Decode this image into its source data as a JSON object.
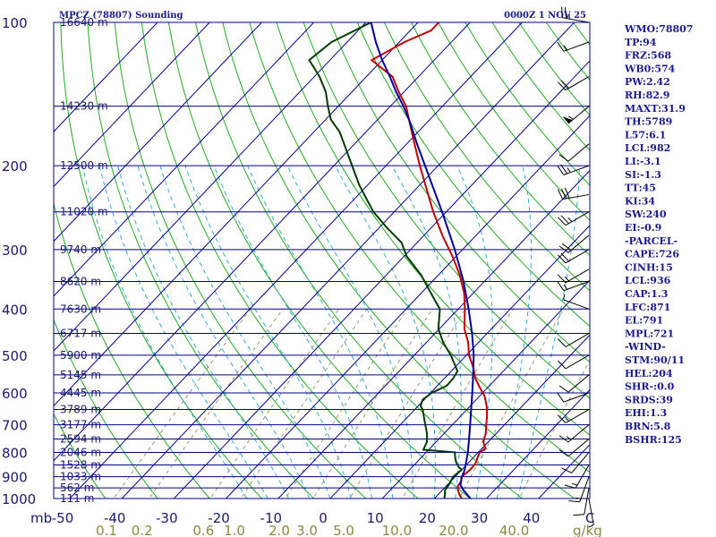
{
  "chart_data": {
    "type": "skew-t",
    "title": "MPCZ (78807) Sounding",
    "valid_time": "0000Z  1 NOV 25",
    "y_axis_label": "mb",
    "x_axis_label": "C",
    "mixing_ratio_unit": "g/kg",
    "pressure_levels": [
      100,
      200,
      300,
      400,
      500,
      600,
      700,
      800,
      900,
      1000
    ],
    "temperature_ticks": [
      -50,
      -40,
      -30,
      -20,
      -10,
      0,
      10,
      20,
      30,
      40
    ],
    "mixing_ratio_ticks": [
      "0.1",
      "0.2",
      "0.6",
      "1.0",
      "2.0",
      "3.0",
      "5.0",
      "10.0",
      "20.0",
      "40.0"
    ],
    "mixing_ratio_values": [
      0.1,
      0.2,
      0.6,
      1.0,
      2.0,
      3.0,
      5.0,
      10.0,
      20.0,
      40.0
    ],
    "heights": [
      {
        "p": 100,
        "label": "16640 m"
      },
      {
        "p": 150,
        "label": "14230 m"
      },
      {
        "p": 200,
        "label": "12500 m"
      },
      {
        "p": 250,
        "label": "11020 m"
      },
      {
        "p": 300,
        "label": "9740 m"
      },
      {
        "p": 350,
        "label": "8620 m"
      },
      {
        "p": 400,
        "label": "7630 m"
      },
      {
        "p": 450,
        "label": "6717 m"
      },
      {
        "p": 500,
        "label": "5900 m"
      },
      {
        "p": 550,
        "label": "5145 m"
      },
      {
        "p": 600,
        "label": "4445 m"
      },
      {
        "p": 650,
        "label": "3789 m"
      },
      {
        "p": 700,
        "label": "3177 m"
      },
      {
        "p": 750,
        "label": "2594 m"
      },
      {
        "p": 800,
        "label": "2046 m"
      },
      {
        "p": 850,
        "label": "1528 m"
      },
      {
        "p": 900,
        "label": "1033 m"
      },
      {
        "p": 950,
        "label": "562 m"
      },
      {
        "p": 1000,
        "label": "111 m"
      }
    ],
    "series": [
      {
        "name": "Temperature",
        "color": "#c00000",
        "points": [
          [
            1004,
            25.5
          ],
          [
            980,
            24
          ],
          [
            960,
            23
          ],
          [
            940,
            22.2
          ],
          [
            920,
            22
          ],
          [
            900,
            21.2
          ],
          [
            880,
            21.5
          ],
          [
            860,
            21.6
          ],
          [
            840,
            21.4
          ],
          [
            820,
            20.8
          ],
          [
            800,
            20.3
          ],
          [
            785,
            20.7
          ],
          [
            760,
            19
          ],
          [
            730,
            18
          ],
          [
            700,
            16.5
          ],
          [
            670,
            15
          ],
          [
            640,
            13.2
          ],
          [
            610,
            11
          ],
          [
            590,
            9
          ],
          [
            560,
            6
          ],
          [
            530,
            3.5
          ],
          [
            500,
            0.5
          ],
          [
            470,
            -2
          ],
          [
            440,
            -5.2
          ],
          [
            400,
            -8.7
          ],
          [
            370,
            -11.8
          ],
          [
            340,
            -15.8
          ],
          [
            310,
            -20.7
          ],
          [
            280,
            -26.5
          ],
          [
            250,
            -32.5
          ],
          [
            220,
            -38.8
          ],
          [
            200,
            -43.5
          ],
          [
            180,
            -48.5
          ],
          [
            160,
            -54
          ],
          [
            150,
            -57
          ],
          [
            140,
            -61
          ],
          [
            130,
            -65
          ],
          [
            120,
            -72
          ],
          [
            110,
            -69
          ],
          [
            104,
            -66
          ],
          [
            100,
            -66
          ]
        ]
      },
      {
        "name": "Dewpoint",
        "color": "#003c00",
        "points": [
          [
            1004,
            22
          ],
          [
            990,
            21.6
          ],
          [
            960,
            20.5
          ],
          [
            930,
            20.2
          ],
          [
            900,
            19.6
          ],
          [
            870,
            20
          ],
          [
            860,
            19
          ],
          [
            840,
            17.6
          ],
          [
            820,
            16.5
          ],
          [
            800,
            15.5
          ],
          [
            790,
            9
          ],
          [
            760,
            8.2
          ],
          [
            730,
            6.7
          ],
          [
            700,
            4.8
          ],
          [
            680,
            3.5
          ],
          [
            650,
            1.5
          ],
          [
            640,
            0.5
          ],
          [
            620,
            -0.3
          ],
          [
            600,
            0.2
          ],
          [
            580,
            1.8
          ],
          [
            560,
            1.7
          ],
          [
            540,
            1.2
          ],
          [
            500,
            -3
          ],
          [
            470,
            -6.8
          ],
          [
            440,
            -10.2
          ],
          [
            400,
            -13.5
          ],
          [
            370,
            -18.2
          ],
          [
            340,
            -23.2
          ],
          [
            310,
            -29.5
          ],
          [
            290,
            -33
          ],
          [
            270,
            -38.5
          ],
          [
            250,
            -44
          ],
          [
            220,
            -51.5
          ],
          [
            200,
            -56.5
          ],
          [
            180,
            -62
          ],
          [
            170,
            -65
          ],
          [
            160,
            -69
          ],
          [
            150,
            -72
          ],
          [
            140,
            -75
          ],
          [
            130,
            -79
          ],
          [
            120,
            -84
          ],
          [
            110,
            -83
          ],
          [
            100,
            -79
          ]
        ]
      },
      {
        "name": "Parcel",
        "color": "#00009a",
        "points": [
          [
            1004,
            27.2
          ],
          [
            980,
            25.5
          ],
          [
            960,
            24
          ],
          [
            936,
            22.5
          ],
          [
            900,
            21.3
          ],
          [
            871,
            20.6
          ],
          [
            840,
            19.5
          ],
          [
            800,
            18
          ],
          [
            750,
            15.8
          ],
          [
            700,
            13.4
          ],
          [
            650,
            10.8
          ],
          [
            600,
            8
          ],
          [
            550,
            4.9
          ],
          [
            500,
            1.4
          ],
          [
            450,
            -2.9
          ],
          [
            400,
            -8
          ],
          [
            350,
            -14
          ],
          [
            300,
            -21.5
          ],
          [
            250,
            -30.8
          ],
          [
            200,
            -42.5
          ],
          [
            180,
            -48
          ],
          [
            160,
            -54
          ],
          [
            150,
            -57.5
          ],
          [
            140,
            -61.5
          ],
          [
            130,
            -65.5
          ],
          [
            120,
            -70
          ],
          [
            110,
            -74.5
          ],
          [
            100,
            -79
          ]
        ]
      }
    ],
    "wind_barbs": [
      {
        "p": 100,
        "dir": 280,
        "spd": 25
      },
      {
        "p": 110,
        "dir": 250,
        "spd": 15
      },
      {
        "p": 130,
        "dir": 240,
        "spd": 20
      },
      {
        "p": 150,
        "dir": 230,
        "spd": 55
      },
      {
        "p": 180,
        "dir": 230,
        "spd": 10
      },
      {
        "p": 200,
        "dir": 250,
        "spd": 25
      },
      {
        "p": 230,
        "dir": 260,
        "spd": 30
      },
      {
        "p": 250,
        "dir": 240,
        "spd": 25
      },
      {
        "p": 280,
        "dir": 230,
        "spd": 20
      },
      {
        "p": 300,
        "dir": 240,
        "spd": 20
      },
      {
        "p": 330,
        "dir": 240,
        "spd": 15
      },
      {
        "p": 350,
        "dir": 250,
        "spd": 15
      },
      {
        "p": 400,
        "dir": 290,
        "spd": 5
      },
      {
        "p": 450,
        "dir": 240,
        "spd": 10
      },
      {
        "p": 500,
        "dir": 240,
        "spd": 10
      },
      {
        "p": 550,
        "dir": 230,
        "spd": 10
      },
      {
        "p": 600,
        "dir": 250,
        "spd": 10
      },
      {
        "p": 650,
        "dir": 240,
        "spd": 15
      },
      {
        "p": 700,
        "dir": 230,
        "spd": 15
      },
      {
        "p": 750,
        "dir": 230,
        "spd": 10
      },
      {
        "p": 800,
        "dir": 220,
        "spd": 10
      },
      {
        "p": 850,
        "dir": 210,
        "spd": 15
      },
      {
        "p": 900,
        "dir": 200,
        "spd": 15
      },
      {
        "p": 950,
        "dir": 190,
        "spd": 10
      },
      {
        "p": 1000,
        "dir": 170,
        "spd": 5
      }
    ],
    "indices": [
      "WMO:78807",
      "TP:94",
      "FRZ:568",
      "WB0:574",
      "PW:2.42",
      "RH:82.9",
      "MAXT:31.9",
      "TH:5789",
      "L57:6.1",
      "LCL:982",
      "LI:-3.1",
      "SI:-1.3",
      "TT:45",
      "KI:34",
      "SW:240",
      "EI:-0.9",
      "-PARCEL-",
      "CAPE:726",
      "CINH:15",
      "LCL:936",
      "CAP:1.3",
      "LFC:871",
      "EL:791",
      "MPL:721",
      "-WIND-",
      "STM:90/11",
      "HEL:204",
      "SHR-:0.0",
      "SRDS:39",
      "EHI:1.3",
      "BRN:5.8",
      "BSHR:125"
    ]
  },
  "colors": {
    "isobar": "#00008b",
    "isotherm": "#00008b",
    "dry_adiabat": "#22aa22",
    "moist_adiabat": "#33aadd",
    "mixing_ratio": "#999966",
    "text": "#1a1a8e"
  }
}
